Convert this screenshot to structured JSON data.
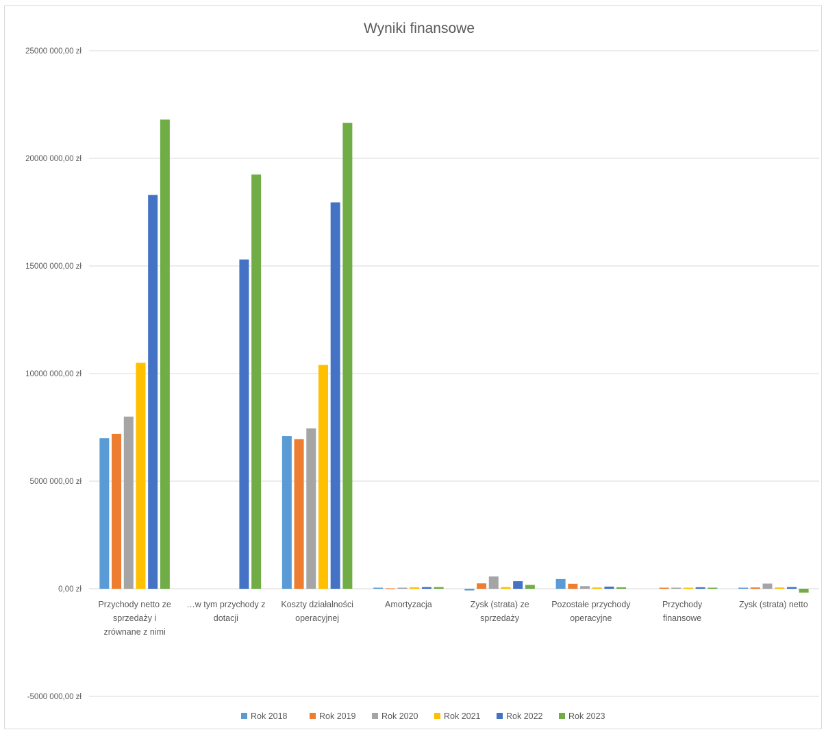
{
  "chart_data": {
    "type": "bar",
    "title": "Wyniki finansowe",
    "xlabel": "",
    "ylabel": "",
    "ylim": [
      -5000000,
      25000000
    ],
    "yticks": [
      -5000000,
      0,
      5000000,
      10000000,
      15000000,
      20000000,
      25000000
    ],
    "ytick_labels": [
      "-5000 000,00 zł",
      "0,00 zł",
      "5000 000,00 zł",
      "10000 000,00 zł",
      "15000 000,00 zł",
      "20000 000,00 zł",
      "25000 000,00 zł"
    ],
    "grid": true,
    "legend_position": "bottom",
    "categories": [
      [
        "Przychody netto ze",
        "sprzedaży i",
        "zrównane z nimi"
      ],
      [
        "…w tym przychody z",
        "dotacji"
      ],
      [
        "Koszty działalności",
        "operacyjnej"
      ],
      [
        "Amortyzacja"
      ],
      [
        "Zysk (strata) ze",
        "sprzedaży"
      ],
      [
        "Pozostałe przychody",
        "operacyjne"
      ],
      [
        "Przychody",
        "finansowe"
      ],
      [
        "Zysk (strata) netto"
      ]
    ],
    "series": [
      {
        "name": "Rok 2018",
        "color": "#5b9bd5",
        "values": [
          7000000,
          0,
          7100000,
          50000,
          -80000,
          450000,
          0,
          50000
        ]
      },
      {
        "name": "Rok 2019",
        "color": "#ed7d31",
        "values": [
          7200000,
          0,
          6950000,
          20000,
          250000,
          230000,
          50000,
          60000
        ]
      },
      {
        "name": "Rok 2020",
        "color": "#a5a5a5",
        "values": [
          8000000,
          0,
          7450000,
          50000,
          570000,
          120000,
          50000,
          240000
        ]
      },
      {
        "name": "Rok 2021",
        "color": "#ffc000",
        "values": [
          10500000,
          0,
          10400000,
          70000,
          80000,
          60000,
          50000,
          60000
        ]
      },
      {
        "name": "Rok 2022",
        "color": "#4472c4",
        "values": [
          18300000,
          15300000,
          17950000,
          80000,
          350000,
          100000,
          70000,
          80000
        ]
      },
      {
        "name": "Rok 2023",
        "color": "#70ad47",
        "values": [
          21800000,
          19250000,
          21650000,
          80000,
          180000,
          70000,
          50000,
          -180000
        ]
      }
    ]
  }
}
